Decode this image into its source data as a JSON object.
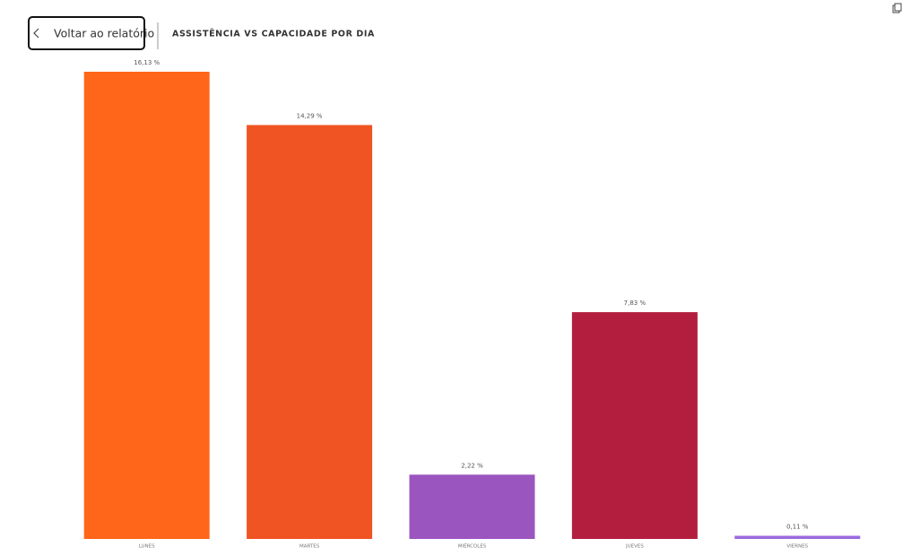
{
  "header": {
    "back_button": "Voltar ao relatório",
    "title": "ASSISTÊNCIA VS CAPACIDADE POR DIA"
  },
  "chart_data": {
    "type": "bar",
    "categories": [
      "LUNES",
      "MARTES",
      "MIÉRCOLES",
      "JUEVES",
      "VIERNES"
    ],
    "values": [
      16.13,
      14.29,
      2.22,
      7.83,
      0.11
    ],
    "value_labels": [
      "16,13 %",
      "14,29 %",
      "2,22 %",
      "7,83 %",
      "0,11 %"
    ],
    "colors": [
      "#ff6619",
      "#f05423",
      "#9b55bf",
      "#b31e3f",
      "#9b6be0"
    ]
  }
}
